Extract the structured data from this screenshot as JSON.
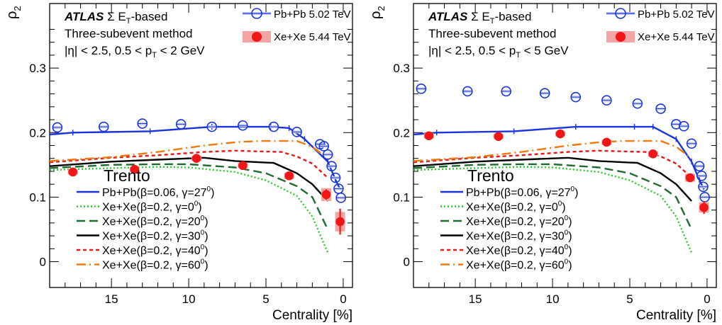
{
  "chart_data": [
    {
      "type": "line",
      "ylabel": "ρ",
      "ylabel_sub": "2",
      "xlabel": "Centrality [%]",
      "xlim": [
        19,
        -0.6
      ],
      "ylim": [
        -0.04,
        0.4
      ],
      "x_ticks": [
        15,
        10,
        5,
        0
      ],
      "y_ticks": [
        0,
        0.1,
        0.2,
        0.3
      ],
      "y_tick_labels": [
        "0",
        "0.1",
        "0.2",
        "0.3"
      ],
      "annotation": {
        "atlas": "ATLAS",
        "line1_rest": " Σ E",
        "line1_sub": "T",
        "line1_tail": "-based",
        "line2": "Three-subevent method",
        "line3_a": "|η| < 2.5, 0.5 < p",
        "line3_sub": "T",
        "line3_b": " < 2 GeV"
      },
      "data_legend": [
        {
          "label": "Pb+Pb 5.02 TeV",
          "color": "#1a35e0",
          "marker": "open-circle"
        },
        {
          "label": "Xe+Xe 5.44 TeV",
          "color": "#f01616",
          "marker": "filled-circle"
        }
      ],
      "model_legend_title": "Trento",
      "series": [
        {
          "name": "Pb+Pb 5.02 TeV",
          "marker": "open-circle",
          "color": "#1a35e0",
          "x": [
            18.5,
            15.5,
            13,
            10.5,
            8.5,
            6.5,
            4.5,
            3,
            1.5,
            1.25,
            1,
            0.75,
            0.5,
            0.3,
            0.15
          ],
          "y": [
            0.208,
            0.209,
            0.214,
            0.213,
            0.209,
            0.211,
            0.209,
            0.201,
            0.182,
            0.179,
            0.166,
            0.148,
            0.13,
            0.113,
            0.099
          ]
        },
        {
          "name": "Xe+Xe 5.44 TeV",
          "marker": "filled-circle",
          "color": "#f01616",
          "x": [
            17.5,
            13.5,
            9.5,
            6.5,
            3.5,
            1.1,
            0.2
          ],
          "y": [
            0.139,
            0.143,
            0.16,
            0.149,
            0.133,
            0.104,
            0.062
          ],
          "yerr": [
            0.004,
            0.004,
            0.004,
            0.004,
            0.004,
            0.008,
            0.02
          ],
          "syst": [
            0.004,
            0.004,
            0.004,
            0.004,
            0.005,
            0.01,
            0.015
          ]
        }
      ],
      "model_series": [
        {
          "name": "Pb+Pb(β=0.06, γ=27",
          "sup": "0",
          "tail": ")",
          "color": "#1a35e0",
          "dash": "solid",
          "x": [
            19,
            17.5,
            12.5,
            8.5,
            4.7,
            3.5,
            2.5,
            1,
            0.5,
            0.2
          ],
          "y": [
            0.197,
            0.2,
            0.202,
            0.209,
            0.209,
            0.207,
            0.19,
            0.155,
            0.127,
            0.112
          ]
        },
        {
          "name": "Xe+Xe(β=0.2, γ=0",
          "sup": "0",
          "tail": ")",
          "color": "#2ec82e",
          "dash": "dot",
          "x": [
            19,
            15,
            12,
            10,
            7,
            5,
            3,
            2,
            1
          ],
          "y": [
            0.142,
            0.145,
            0.147,
            0.146,
            0.139,
            0.126,
            0.102,
            0.07,
            0.014
          ]
        },
        {
          "name": "Xe+Xe(β=0.2, γ=20",
          "sup": "0",
          "tail": ")",
          "color": "#1e6b30",
          "dash": "longdash",
          "x": [
            19,
            15,
            12,
            10,
            7,
            5,
            3,
            2,
            1
          ],
          "y": [
            0.145,
            0.15,
            0.151,
            0.151,
            0.146,
            0.137,
            0.117,
            0.1,
            0.05
          ]
        },
        {
          "name": "Xe+Xe(β=0.2, γ=30",
          "sup": "0",
          "tail": ")",
          "color": "#000000",
          "dash": "solid",
          "x": [
            19,
            15,
            12,
            9,
            7,
            4.5,
            3,
            2,
            1
          ],
          "y": [
            0.148,
            0.155,
            0.158,
            0.161,
            0.156,
            0.153,
            0.137,
            0.12,
            0.094
          ]
        },
        {
          "name": "Xe+Xe(β=0.2, γ=40",
          "sup": "0",
          "tail": ")",
          "color": "#e81818",
          "dash": "dash",
          "x": [
            19,
            15,
            12,
            9,
            7,
            4,
            3,
            2,
            1
          ],
          "y": [
            0.154,
            0.161,
            0.165,
            0.17,
            0.172,
            0.17,
            0.163,
            0.152,
            0.13
          ]
        },
        {
          "name": "Xe+Xe(β=0.2, γ=60",
          "sup": "0",
          "tail": ")",
          "color": "#f07a10",
          "dash": "dashdot",
          "x": [
            19,
            15,
            12,
            9,
            7,
            5.5,
            3,
            2,
            1
          ],
          "y": [
            0.156,
            0.162,
            0.17,
            0.18,
            0.185,
            0.187,
            0.187,
            0.178,
            0.16
          ]
        }
      ]
    },
    {
      "type": "line",
      "ylabel": "ρ",
      "ylabel_sub": "2",
      "xlabel": "Centrality [%]",
      "xlim": [
        19,
        -0.6
      ],
      "ylim": [
        -0.04,
        0.4
      ],
      "x_ticks": [
        15,
        10,
        5,
        0
      ],
      "y_ticks": [
        0,
        0.1,
        0.2,
        0.3
      ],
      "y_tick_labels": [
        "0",
        "0.1",
        "0.2",
        "0.3"
      ],
      "annotation": {
        "atlas": "ATLAS",
        "line1_rest": " Σ E",
        "line1_sub": "T",
        "line1_tail": "-based",
        "line2": "Three-subevent method",
        "line3_a": "|η| < 2.5, 0.5 < p",
        "line3_sub": "T",
        "line3_b": " < 5 GeV"
      },
      "data_legend": [
        {
          "label": "Pb+Pb 5.02 TeV",
          "color": "#1a35e0",
          "marker": "open-circle"
        },
        {
          "label": "Xe+Xe 5.44 TeV",
          "color": "#f01616",
          "marker": "filled-circle"
        }
      ],
      "model_legend_title": "Trento",
      "series": [
        {
          "name": "Pb+Pb 5.02 TeV",
          "marker": "open-circle",
          "color": "#1a35e0",
          "x": [
            18.5,
            15.5,
            13,
            10.5,
            8.5,
            6.5,
            4.5,
            3,
            2,
            1.5,
            1,
            0.5,
            0.35,
            0.25,
            0.15
          ],
          "y": [
            0.268,
            0.264,
            0.264,
            0.261,
            0.255,
            0.25,
            0.245,
            0.237,
            0.213,
            0.21,
            0.183,
            0.148,
            0.133,
            0.116,
            0.1
          ]
        },
        {
          "name": "Xe+Xe 5.44 TeV",
          "marker": "filled-circle",
          "color": "#f01616",
          "x": [
            18,
            13.5,
            9.5,
            6.5,
            3.5,
            1.1,
            0.2
          ],
          "y": [
            0.195,
            0.194,
            0.198,
            0.185,
            0.167,
            0.13,
            0.084
          ],
          "yerr": [
            0.004,
            0.004,
            0.004,
            0.004,
            0.004,
            0.006,
            0.01
          ],
          "syst": [
            0.004,
            0.004,
            0.004,
            0.004,
            0.004,
            0.006,
            0.008
          ]
        }
      ],
      "model_series": [
        {
          "name": "Pb+Pb(β=0.06, γ=27",
          "sup": "0",
          "tail": ")",
          "color": "#1a35e0",
          "dash": "solid",
          "x": [
            19,
            17.5,
            12.5,
            8.5,
            4.7,
            3.5,
            2,
            1,
            0.5,
            0.2
          ],
          "y": [
            0.197,
            0.2,
            0.202,
            0.209,
            0.209,
            0.209,
            0.19,
            0.155,
            0.127,
            0.112
          ]
        },
        {
          "name": "Xe+Xe(β=0.2, γ=0",
          "sup": "0",
          "tail": ")",
          "color": "#2ec82e",
          "dash": "dot",
          "x": [
            19,
            15,
            12,
            10,
            7,
            5,
            3,
            2,
            1
          ],
          "y": [
            0.142,
            0.145,
            0.147,
            0.146,
            0.139,
            0.126,
            0.102,
            0.07,
            0.014
          ]
        },
        {
          "name": "Xe+Xe(β=0.2, γ=20",
          "sup": "0",
          "tail": ")",
          "color": "#1e6b30",
          "dash": "longdash",
          "x": [
            19,
            15,
            12,
            10,
            7,
            5,
            3,
            2,
            1
          ],
          "y": [
            0.145,
            0.15,
            0.151,
            0.151,
            0.146,
            0.137,
            0.117,
            0.1,
            0.05
          ]
        },
        {
          "name": "Xe+Xe(β=0.2, γ=30",
          "sup": "0",
          "tail": ")",
          "color": "#000000",
          "dash": "solid",
          "x": [
            19,
            15,
            12,
            9,
            7,
            4.5,
            3,
            2,
            1
          ],
          "y": [
            0.148,
            0.155,
            0.158,
            0.161,
            0.156,
            0.153,
            0.137,
            0.12,
            0.094
          ]
        },
        {
          "name": "Xe+Xe(β=0.2, γ=40",
          "sup": "0",
          "tail": ")",
          "color": "#e81818",
          "dash": "dash",
          "x": [
            19,
            15,
            12,
            9,
            7,
            4,
            3,
            2,
            1
          ],
          "y": [
            0.154,
            0.161,
            0.165,
            0.17,
            0.172,
            0.17,
            0.163,
            0.152,
            0.13
          ]
        },
        {
          "name": "Xe+Xe(β=0.2, γ=60",
          "sup": "0",
          "tail": ")",
          "color": "#f07a10",
          "dash": "dashdot",
          "x": [
            19,
            15,
            12,
            9,
            7,
            5.5,
            3,
            2,
            1
          ],
          "y": [
            0.156,
            0.162,
            0.17,
            0.18,
            0.185,
            0.187,
            0.187,
            0.178,
            0.16
          ]
        }
      ]
    }
  ]
}
